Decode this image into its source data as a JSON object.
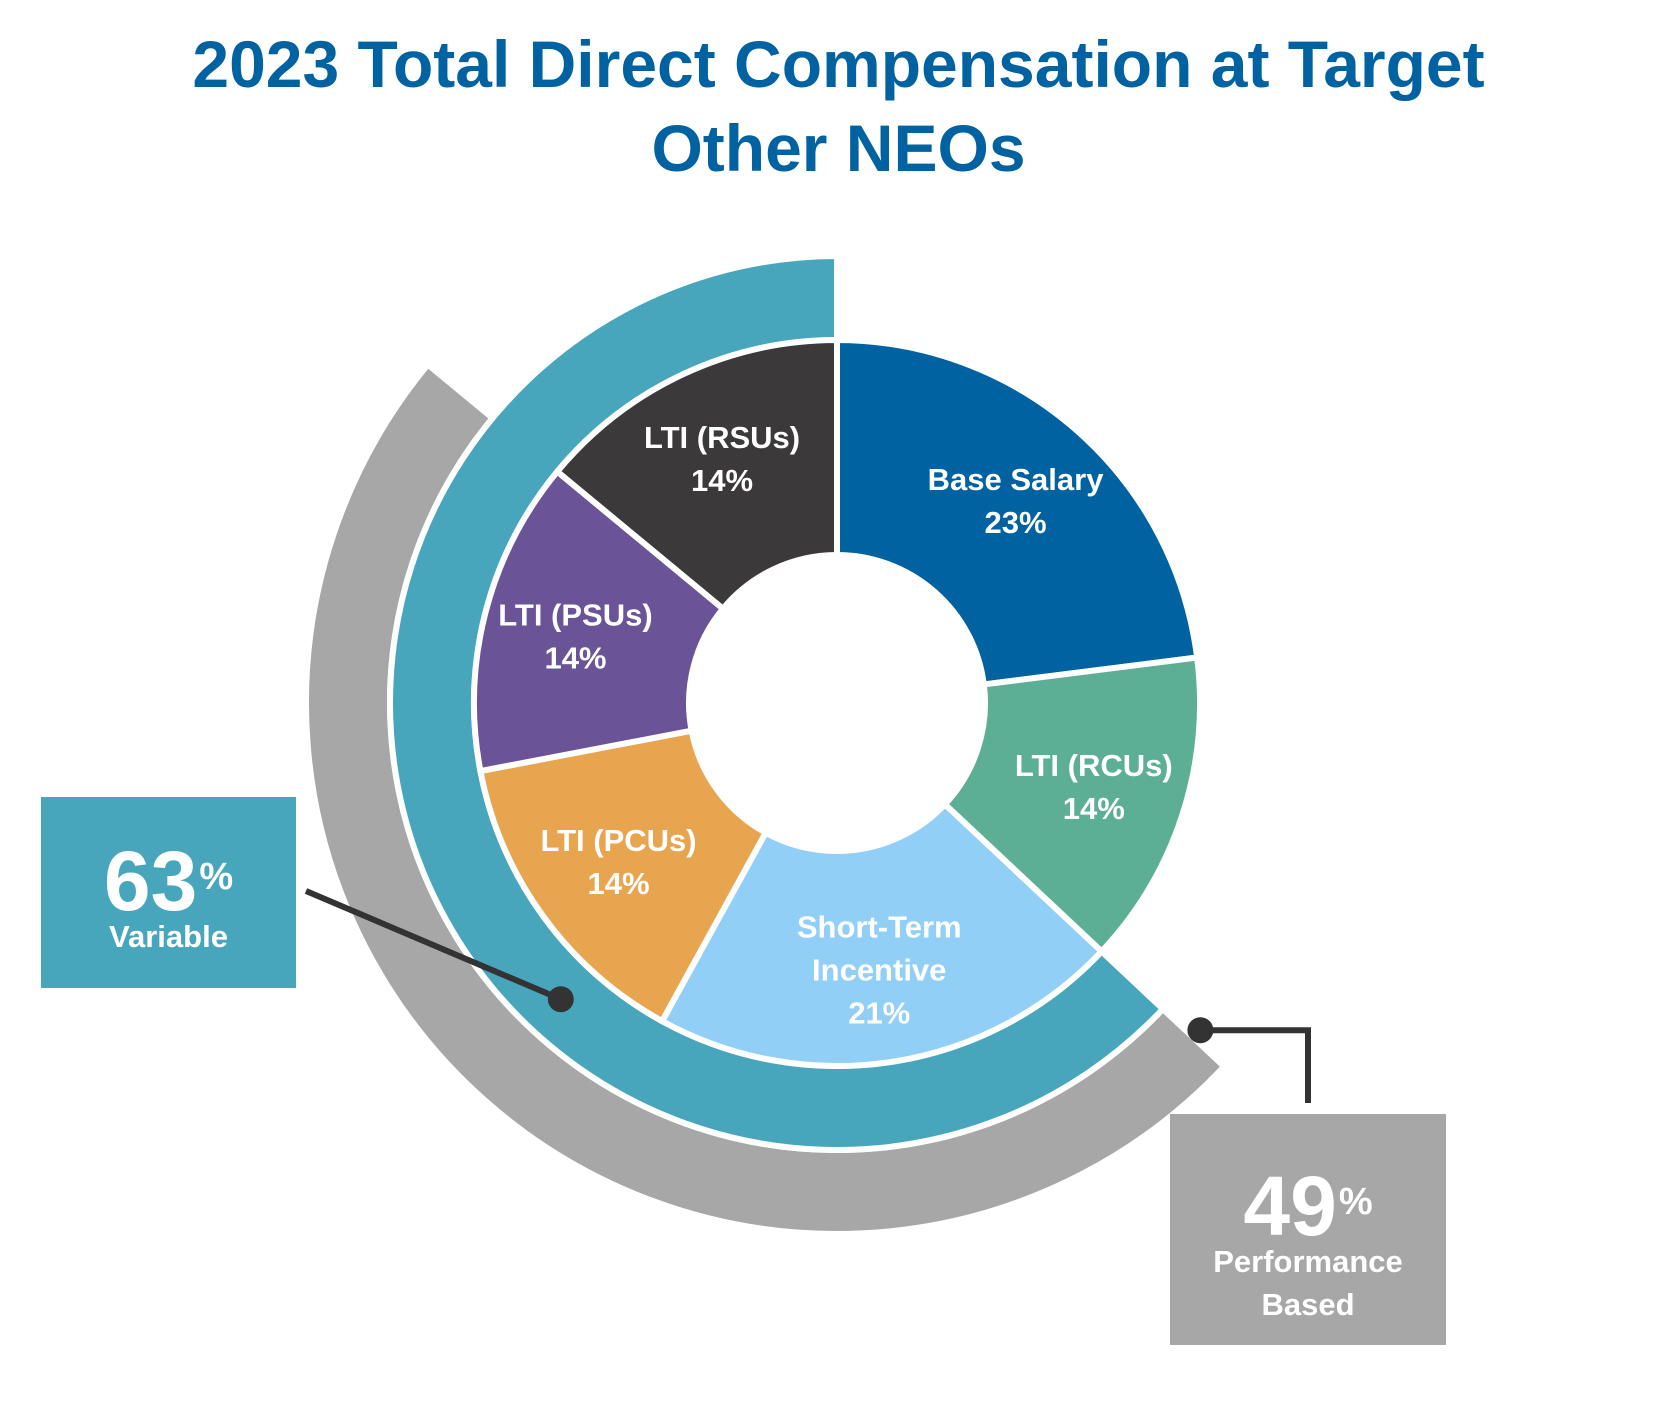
{
  "title_line1": "2023 Total Direct Compensation at Target",
  "title_line2": "Other NEOs",
  "colors": {
    "title": "#0062a0",
    "base_salary": "#0062a0",
    "lti_rcus": "#5caf94",
    "short_term_incentive": "#92cff7",
    "lti_pcus": "#e8a54f",
    "lti_psus": "#6a5396",
    "lti_rsus": "#3c393a",
    "variable_ring": "#48a6bc",
    "performance_ring": "#a7a7a7",
    "connector": "#333333"
  },
  "chart_data": {
    "type": "pie",
    "title": "2023 Total Direct Compensation at Target Other NEOs",
    "slices": [
      {
        "key": "base_salary",
        "label_lines": [
          "Base Salary",
          "23%"
        ],
        "value": 23
      },
      {
        "key": "lti_rcus",
        "label_lines": [
          "LTI (RCUs)",
          "14%"
        ],
        "value": 14
      },
      {
        "key": "short_term_incentive",
        "label_lines": [
          "Short-Term",
          "Incentive",
          "21%"
        ],
        "value": 21
      },
      {
        "key": "lti_pcus",
        "label_lines": [
          "LTI (PCUs)",
          "14%"
        ],
        "value": 14
      },
      {
        "key": "lti_psus",
        "label_lines": [
          "LTI (PSUs)",
          "14%"
        ],
        "value": 14
      },
      {
        "key": "lti_rsus",
        "label_lines": [
          "LTI (RSUs)",
          "14%"
        ],
        "value": 14
      }
    ],
    "rings": [
      {
        "key": "variable_ring",
        "name": "Variable",
        "value": 63
      },
      {
        "key": "performance_ring",
        "name": "Performance Based",
        "value": 49
      }
    ]
  },
  "callouts": {
    "variable": {
      "value": "63",
      "unit": "%",
      "label": "Variable"
    },
    "performance": {
      "value": "49",
      "unit": "%",
      "label_line1": "Performance",
      "label_line2": "Based"
    }
  }
}
